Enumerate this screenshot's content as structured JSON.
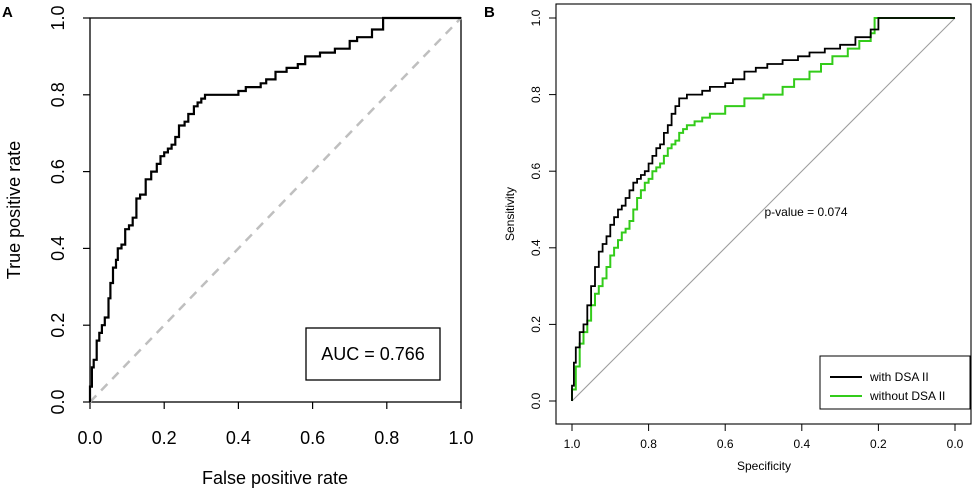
{
  "colors": {
    "black": "#000000",
    "green": "#33cc1a",
    "diagonal_dashed": "#bfbfbf",
    "diagonal_solid": "#9e9e9e"
  },
  "chart_data": [
    {
      "panel": "A",
      "type": "line",
      "xlabel": "False positive rate",
      "ylabel": "True positive rate",
      "xlim": [
        0,
        1
      ],
      "ylim": [
        0,
        1
      ],
      "xticks": [
        "0.0",
        "0.2",
        "0.4",
        "0.6",
        "0.8",
        "1.0"
      ],
      "yticks": [
        "0.0",
        "0.2",
        "0.4",
        "0.6",
        "0.8",
        "1.0"
      ],
      "annotation": "AUC = 0.766",
      "annotation_position": "bottom-right",
      "reference_line": "dashed diagonal (chance)",
      "series": [
        {
          "name": "ROC",
          "x": [
            0,
            0,
            0.005,
            0.005,
            0.01,
            0.01,
            0.018,
            0.018,
            0.025,
            0.025,
            0.032,
            0.032,
            0.04,
            0.04,
            0.05,
            0.05,
            0.055,
            0.055,
            0.062,
            0.062,
            0.07,
            0.07,
            0.075,
            0.075,
            0.085,
            0.085,
            0.095,
            0.095,
            0.105,
            0.105,
            0.115,
            0.115,
            0.125,
            0.125,
            0.135,
            0.135,
            0.15,
            0.15,
            0.165,
            0.165,
            0.18,
            0.18,
            0.19,
            0.19,
            0.2,
            0.2,
            0.21,
            0.21,
            0.22,
            0.22,
            0.23,
            0.23,
            0.24,
            0.24,
            0.255,
            0.255,
            0.265,
            0.265,
            0.28,
            0.28,
            0.29,
            0.29,
            0.3,
            0.3,
            0.31,
            0.31,
            0.32,
            0.32,
            0.33,
            0.33,
            0.345,
            0.345,
            0.36,
            0.36,
            0.38,
            0.38,
            0.4,
            0.4,
            0.42,
            0.42,
            0.46,
            0.46,
            0.475,
            0.475,
            0.5,
            0.5,
            0.53,
            0.53,
            0.56,
            0.56,
            0.58,
            0.58,
            0.62,
            0.62,
            0.66,
            0.66,
            0.7,
            0.7,
            0.72,
            0.72,
            0.76,
            0.76,
            0.79,
            0.79,
            1.0
          ],
          "y": [
            0,
            0.04,
            0.04,
            0.09,
            0.09,
            0.11,
            0.11,
            0.16,
            0.16,
            0.18,
            0.18,
            0.2,
            0.2,
            0.22,
            0.22,
            0.27,
            0.27,
            0.31,
            0.31,
            0.35,
            0.35,
            0.37,
            0.37,
            0.4,
            0.4,
            0.41,
            0.41,
            0.45,
            0.45,
            0.46,
            0.46,
            0.48,
            0.48,
            0.53,
            0.53,
            0.54,
            0.54,
            0.58,
            0.58,
            0.6,
            0.6,
            0.62,
            0.62,
            0.64,
            0.64,
            0.65,
            0.65,
            0.66,
            0.66,
            0.67,
            0.67,
            0.69,
            0.69,
            0.72,
            0.72,
            0.73,
            0.73,
            0.75,
            0.75,
            0.77,
            0.77,
            0.78,
            0.78,
            0.79,
            0.79,
            0.8,
            0.8,
            0.8,
            0.8,
            0.8,
            0.8,
            0.8,
            0.8,
            0.8,
            0.8,
            0.8,
            0.8,
            0.81,
            0.81,
            0.82,
            0.82,
            0.83,
            0.83,
            0.84,
            0.84,
            0.86,
            0.86,
            0.87,
            0.87,
            0.88,
            0.88,
            0.9,
            0.9,
            0.91,
            0.91,
            0.92,
            0.92,
            0.94,
            0.94,
            0.95,
            0.95,
            0.97,
            0.97,
            1.0,
            1.0
          ]
        }
      ]
    },
    {
      "panel": "B",
      "type": "line",
      "xlabel": "Specificity",
      "ylabel": "Sensitivity",
      "xlim": [
        1,
        0
      ],
      "ylim": [
        0,
        1
      ],
      "xticks": [
        "1.0",
        "0.8",
        "0.6",
        "0.4",
        "0.2",
        "0.0"
      ],
      "yticks": [
        "0.0",
        "0.2",
        "0.4",
        "0.6",
        "0.8",
        "1.0"
      ],
      "annotation": "p-value = 0.074",
      "reference_line": "solid diagonal (chance)",
      "legend_position": "bottom-right",
      "series": [
        {
          "name": "with DSA II",
          "color": "#000000",
          "specificity": [
            1.0,
            1.0,
            0.995,
            0.995,
            0.99,
            0.99,
            0.98,
            0.98,
            0.97,
            0.97,
            0.96,
            0.96,
            0.95,
            0.95,
            0.94,
            0.94,
            0.93,
            0.93,
            0.92,
            0.92,
            0.91,
            0.91,
            0.9,
            0.9,
            0.89,
            0.89,
            0.88,
            0.88,
            0.87,
            0.87,
            0.86,
            0.86,
            0.85,
            0.85,
            0.84,
            0.84,
            0.83,
            0.83,
            0.82,
            0.82,
            0.81,
            0.81,
            0.8,
            0.8,
            0.79,
            0.79,
            0.78,
            0.78,
            0.77,
            0.77,
            0.76,
            0.76,
            0.75,
            0.75,
            0.74,
            0.74,
            0.73,
            0.73,
            0.72,
            0.72,
            0.71,
            0.71,
            0.7,
            0.7,
            0.68,
            0.68,
            0.66,
            0.66,
            0.64,
            0.64,
            0.6,
            0.6,
            0.58,
            0.58,
            0.55,
            0.55,
            0.52,
            0.52,
            0.49,
            0.49,
            0.45,
            0.45,
            0.41,
            0.41,
            0.38,
            0.38,
            0.34,
            0.34,
            0.3,
            0.3,
            0.26,
            0.26,
            0.22,
            0.22,
            0.2,
            0.2,
            0.17,
            0.17,
            0.0
          ],
          "sensitivity": [
            0.0,
            0.04,
            0.04,
            0.1,
            0.1,
            0.14,
            0.14,
            0.18,
            0.18,
            0.2,
            0.2,
            0.25,
            0.25,
            0.3,
            0.3,
            0.35,
            0.35,
            0.39,
            0.39,
            0.41,
            0.41,
            0.43,
            0.43,
            0.46,
            0.46,
            0.48,
            0.48,
            0.5,
            0.5,
            0.51,
            0.51,
            0.53,
            0.53,
            0.55,
            0.55,
            0.57,
            0.57,
            0.58,
            0.58,
            0.59,
            0.59,
            0.6,
            0.6,
            0.62,
            0.62,
            0.64,
            0.64,
            0.66,
            0.66,
            0.67,
            0.67,
            0.7,
            0.7,
            0.72,
            0.72,
            0.75,
            0.75,
            0.77,
            0.77,
            0.79,
            0.79,
            0.79,
            0.79,
            0.8,
            0.8,
            0.8,
            0.8,
            0.81,
            0.81,
            0.82,
            0.82,
            0.83,
            0.83,
            0.84,
            0.84,
            0.86,
            0.86,
            0.87,
            0.87,
            0.88,
            0.88,
            0.89,
            0.89,
            0.9,
            0.9,
            0.91,
            0.91,
            0.92,
            0.92,
            0.93,
            0.93,
            0.95,
            0.95,
            0.97,
            0.97,
            1.0,
            1.0,
            1.0,
            1.0
          ]
        },
        {
          "name": "without DSA II",
          "color": "#33cc1a",
          "specificity": [
            1.0,
            1.0,
            0.99,
            0.99,
            0.98,
            0.98,
            0.97,
            0.97,
            0.96,
            0.96,
            0.95,
            0.95,
            0.94,
            0.94,
            0.93,
            0.93,
            0.92,
            0.92,
            0.91,
            0.91,
            0.9,
            0.9,
            0.89,
            0.89,
            0.88,
            0.88,
            0.87,
            0.87,
            0.86,
            0.86,
            0.85,
            0.85,
            0.84,
            0.84,
            0.83,
            0.83,
            0.82,
            0.82,
            0.81,
            0.81,
            0.8,
            0.8,
            0.79,
            0.79,
            0.78,
            0.78,
            0.77,
            0.77,
            0.76,
            0.76,
            0.75,
            0.75,
            0.74,
            0.74,
            0.73,
            0.73,
            0.72,
            0.72,
            0.71,
            0.71,
            0.7,
            0.7,
            0.68,
            0.68,
            0.66,
            0.66,
            0.64,
            0.64,
            0.6,
            0.6,
            0.55,
            0.55,
            0.5,
            0.5,
            0.45,
            0.45,
            0.42,
            0.42,
            0.38,
            0.38,
            0.35,
            0.35,
            0.32,
            0.32,
            0.28,
            0.28,
            0.25,
            0.25,
            0.22,
            0.22,
            0.21,
            0.21,
            0.0
          ],
          "sensitivity": [
            0.0,
            0.03,
            0.03,
            0.09,
            0.09,
            0.15,
            0.15,
            0.18,
            0.18,
            0.21,
            0.21,
            0.25,
            0.25,
            0.28,
            0.28,
            0.3,
            0.3,
            0.32,
            0.32,
            0.35,
            0.35,
            0.38,
            0.38,
            0.4,
            0.4,
            0.42,
            0.42,
            0.44,
            0.44,
            0.45,
            0.45,
            0.47,
            0.47,
            0.5,
            0.5,
            0.53,
            0.53,
            0.55,
            0.55,
            0.57,
            0.57,
            0.58,
            0.58,
            0.6,
            0.6,
            0.61,
            0.61,
            0.62,
            0.62,
            0.64,
            0.64,
            0.66,
            0.66,
            0.67,
            0.67,
            0.68,
            0.68,
            0.7,
            0.7,
            0.71,
            0.71,
            0.72,
            0.72,
            0.73,
            0.73,
            0.74,
            0.74,
            0.75,
            0.75,
            0.77,
            0.77,
            0.79,
            0.79,
            0.8,
            0.8,
            0.82,
            0.82,
            0.84,
            0.84,
            0.86,
            0.86,
            0.88,
            0.88,
            0.9,
            0.9,
            0.92,
            0.92,
            0.94,
            0.94,
            0.96,
            0.96,
            1.0,
            1.0
          ]
        }
      ]
    }
  ]
}
